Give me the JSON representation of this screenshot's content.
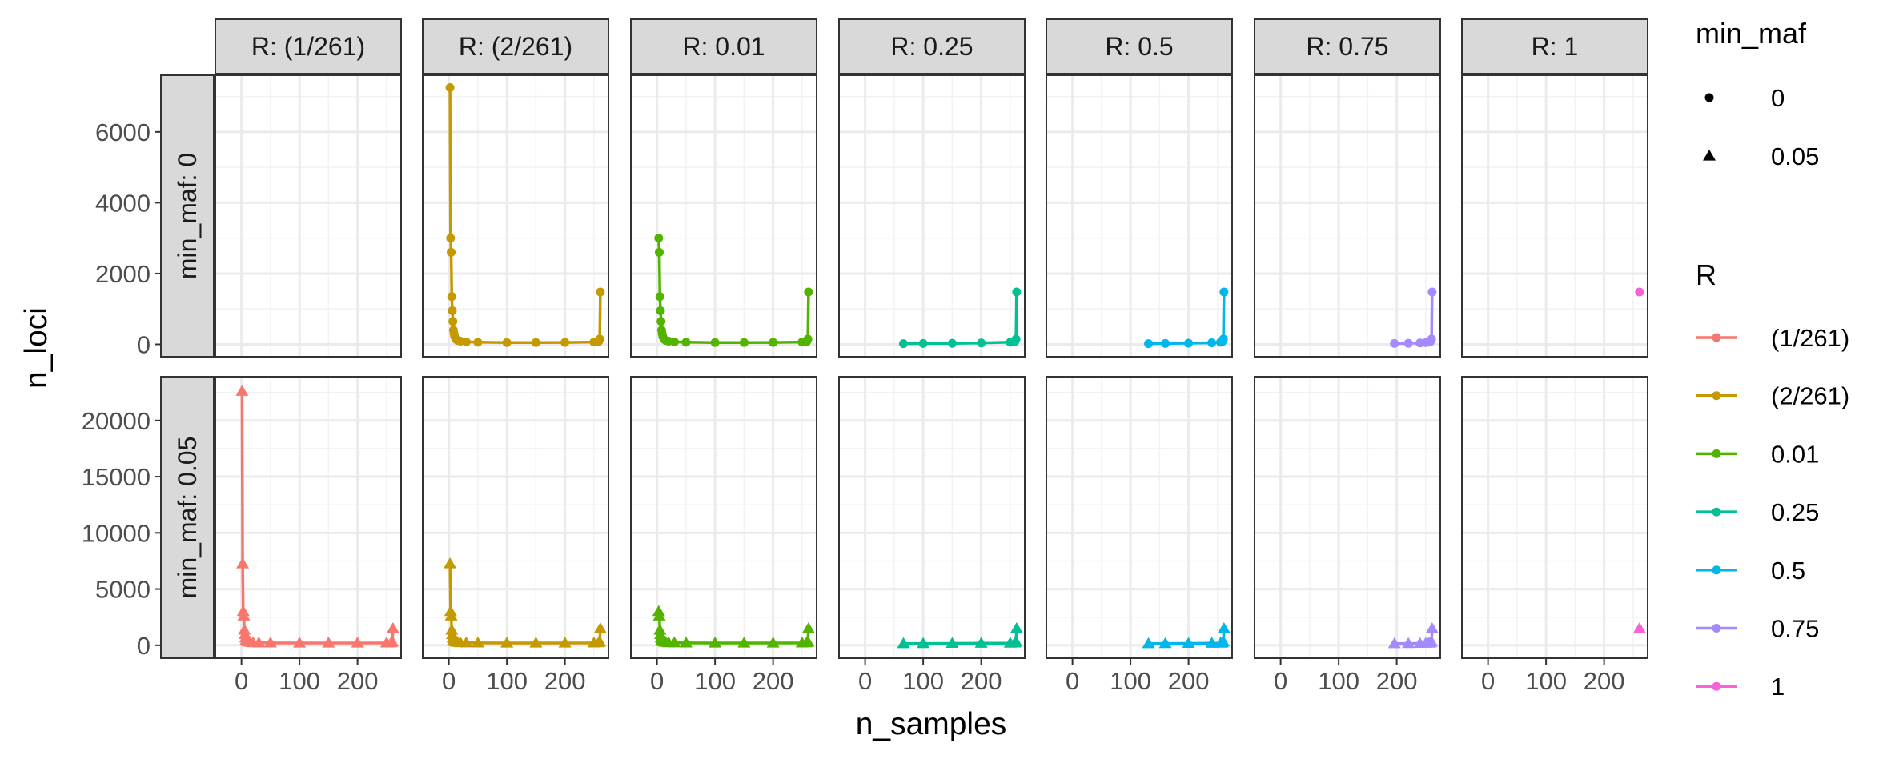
{
  "chart_data": {
    "type": "line",
    "xlabel": "n_samples",
    "ylabel": "n_loci",
    "x_ticks": [
      0,
      100,
      200
    ],
    "xlim": [
      -45,
      275
    ],
    "col_facets": [
      {
        "label": "R: (1/261)",
        "R": "(1/261)"
      },
      {
        "label": "R: (2/261)",
        "R": "(2/261)"
      },
      {
        "label": "R: 0.01",
        "R": "0.01"
      },
      {
        "label": "R: 0.25",
        "R": "0.25"
      },
      {
        "label": "R: 0.5",
        "R": "0.5"
      },
      {
        "label": "R: 0.75",
        "R": "0.75"
      },
      {
        "label": "R: 1",
        "R": "1"
      }
    ],
    "row_facets": [
      {
        "label": "min_maf: 0",
        "min_maf": "0",
        "shape": "circle",
        "ylim": [
          -350,
          7600
        ],
        "y_ticks": [
          0,
          2000,
          4000,
          6000
        ]
      },
      {
        "label": "min_maf: 0.05",
        "min_maf": "0.05",
        "shape": "triangle",
        "ylim": [
          -1150,
          23900
        ],
        "y_ticks": [
          0,
          5000,
          10000,
          15000,
          20000
        ]
      }
    ],
    "series": [
      {
        "name": "(1/261)",
        "min_maf": "0",
        "x": [],
        "y": []
      },
      {
        "name": "(2/261)",
        "min_maf": "0",
        "x": [
          2,
          3,
          4,
          5,
          6,
          7,
          8,
          9,
          10,
          12,
          15,
          20,
          30,
          50,
          100,
          150,
          200,
          250,
          258,
          260,
          261
        ],
        "y": [
          7250,
          3000,
          2600,
          1350,
          950,
          650,
          400,
          300,
          220,
          150,
          110,
          90,
          70,
          60,
          50,
          50,
          55,
          65,
          80,
          150,
          1480
        ]
      },
      {
        "name": "0.01",
        "min_maf": "0",
        "x": [
          3,
          4,
          5,
          6,
          7,
          8,
          9,
          10,
          12,
          15,
          20,
          30,
          50,
          100,
          150,
          200,
          250,
          258,
          260,
          261
        ],
        "y": [
          3000,
          2600,
          1350,
          950,
          650,
          400,
          300,
          220,
          150,
          110,
          90,
          70,
          60,
          50,
          50,
          55,
          65,
          80,
          150,
          1480
        ]
      },
      {
        "name": "0.25",
        "min_maf": "0",
        "x": [
          66,
          100,
          150,
          200,
          250,
          258,
          260,
          261
        ],
        "y": [
          20,
          25,
          30,
          40,
          60,
          80,
          150,
          1480
        ]
      },
      {
        "name": "0.5",
        "min_maf": "0",
        "x": [
          131,
          160,
          200,
          240,
          255,
          258,
          260,
          261
        ],
        "y": [
          20,
          25,
          35,
          45,
          60,
          80,
          150,
          1480
        ]
      },
      {
        "name": "0.75",
        "min_maf": "0",
        "x": [
          196,
          220,
          240,
          250,
          255,
          258,
          260,
          261
        ],
        "y": [
          25,
          30,
          40,
          50,
          60,
          80,
          150,
          1480
        ]
      },
      {
        "name": "1",
        "min_maf": "0",
        "x": [
          261
        ],
        "y": [
          1480
        ]
      },
      {
        "name": "(1/261)",
        "min_maf": "0.05",
        "x": [
          1,
          2,
          3,
          4,
          5,
          6,
          7,
          8,
          10,
          12,
          15,
          20,
          30,
          50,
          100,
          150,
          200,
          250,
          258,
          260,
          261
        ],
        "y": [
          22600,
          7250,
          3000,
          2600,
          1350,
          950,
          650,
          450,
          350,
          300,
          260,
          230,
          220,
          210,
          200,
          200,
          200,
          210,
          230,
          300,
          1480
        ]
      },
      {
        "name": "(2/261)",
        "min_maf": "0.05",
        "x": [
          2,
          3,
          4,
          5,
          6,
          7,
          8,
          10,
          12,
          15,
          20,
          30,
          50,
          100,
          150,
          200,
          250,
          258,
          260,
          261
        ],
        "y": [
          7250,
          3000,
          2600,
          1350,
          950,
          650,
          450,
          350,
          300,
          260,
          230,
          220,
          210,
          200,
          200,
          200,
          210,
          230,
          300,
          1480
        ]
      },
      {
        "name": "0.01",
        "min_maf": "0.05",
        "x": [
          3,
          4,
          5,
          6,
          7,
          8,
          10,
          12,
          15,
          20,
          30,
          50,
          100,
          150,
          200,
          250,
          258,
          260,
          261
        ],
        "y": [
          3000,
          2600,
          1350,
          950,
          650,
          450,
          350,
          300,
          260,
          230,
          220,
          210,
          200,
          200,
          200,
          210,
          230,
          300,
          1480
        ]
      },
      {
        "name": "0.25",
        "min_maf": "0.05",
        "x": [
          66,
          100,
          150,
          200,
          250,
          258,
          260,
          261
        ],
        "y": [
          150,
          160,
          170,
          180,
          190,
          210,
          300,
          1480
        ]
      },
      {
        "name": "0.5",
        "min_maf": "0.05",
        "x": [
          131,
          160,
          200,
          240,
          255,
          258,
          260,
          261
        ],
        "y": [
          150,
          160,
          170,
          180,
          190,
          210,
          300,
          1480
        ]
      },
      {
        "name": "0.75",
        "min_maf": "0.05",
        "x": [
          196,
          220,
          240,
          250,
          255,
          258,
          260,
          261
        ],
        "y": [
          150,
          160,
          170,
          180,
          190,
          210,
          300,
          1480
        ]
      },
      {
        "name": "1",
        "min_maf": "0.05",
        "x": [
          261
        ],
        "y": [
          1480
        ]
      }
    ],
    "legends": [
      {
        "title": "min_maf",
        "kind": "shape",
        "items": [
          {
            "label": "0",
            "shape": "circle"
          },
          {
            "label": "0.05",
            "shape": "triangle"
          }
        ]
      },
      {
        "title": "R",
        "kind": "color",
        "items": [
          {
            "label": "(1/261)",
            "color": "#F8766D"
          },
          {
            "label": "(2/261)",
            "color": "#C49A00"
          },
          {
            "label": "0.01",
            "color": "#53B400"
          },
          {
            "label": "0.25",
            "color": "#00C094"
          },
          {
            "label": "0.5",
            "color": "#00B6EB"
          },
          {
            "label": "0.75",
            "color": "#A58AFF"
          },
          {
            "label": "1",
            "color": "#FB61D7"
          }
        ]
      }
    ],
    "legend_position": "right",
    "grid": true
  }
}
